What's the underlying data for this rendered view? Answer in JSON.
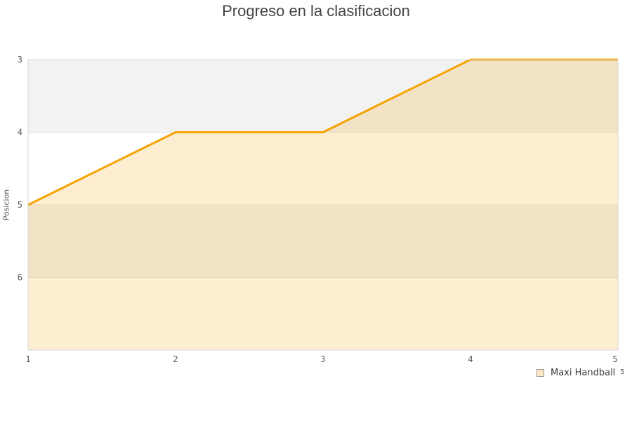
{
  "title": "Progreso en la clasificacion",
  "chart_data": {
    "type": "line",
    "title": "Progreso en la clasificacion",
    "xlabel": "",
    "ylabel": "Posicion",
    "x": [
      1,
      2,
      3,
      4,
      5
    ],
    "series": [
      {
        "name": "Maxi Handball",
        "values": [
          5,
          4,
          4,
          3,
          3
        ]
      }
    ],
    "x_ticks": [
      "1",
      "2",
      "3",
      "4",
      "5"
    ],
    "y_ticks": [
      "3",
      "4",
      "5",
      "6"
    ],
    "xlim": [
      1,
      5
    ],
    "ylim": [
      3,
      7
    ],
    "y_axis_inverted": true,
    "grid": "alternating-horizontal-bands",
    "legend_position": "bottom-right",
    "colors": {
      "line": "#F5A302",
      "area_fill": "rgba(245,163,2,0.18)",
      "band_gray": "#F2F2F2",
      "band_white": "#FFFFFF",
      "gridline": "#E4E4E4",
      "plot_border": "#D6D6D6"
    }
  },
  "legend": {
    "label": "Maxi Handball",
    "note": "5"
  }
}
